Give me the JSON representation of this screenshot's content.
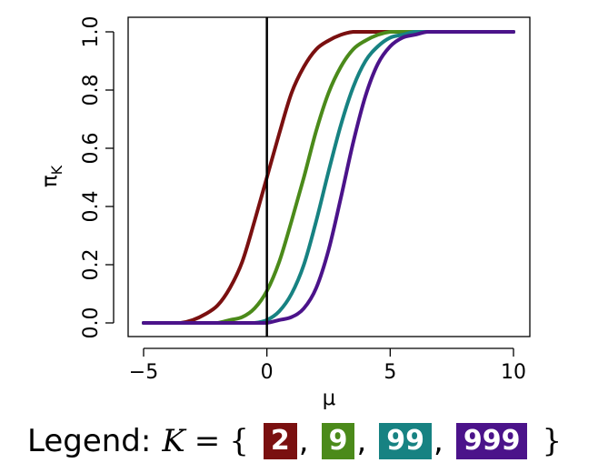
{
  "chart_data": {
    "type": "line",
    "xlabel": "μ",
    "ylabel": "π_K",
    "ylabel_main": "π",
    "ylabel_sub": "K",
    "xlim": [
      -5,
      10
    ],
    "ylim": [
      0,
      1
    ],
    "xticks": [
      -5,
      0,
      5,
      10
    ],
    "xtick_labels": [
      "−5",
      "0",
      "5",
      "10"
    ],
    "yticks": [
      0,
      0.2,
      0.4,
      0.6,
      0.8,
      1.0
    ],
    "ytick_labels": [
      "0.0",
      "0.2",
      "0.4",
      "0.6",
      "0.8",
      "1.0"
    ],
    "vline_x": 0,
    "grid": false,
    "x": [
      -5,
      -4.5,
      -4,
      -3.5,
      -3,
      -2.5,
      -2,
      -1.5,
      -1,
      -0.5,
      0,
      0.5,
      1,
      1.5,
      2,
      2.5,
      3,
      3.5,
      4,
      4.5,
      5,
      5.5,
      6,
      6.5,
      7,
      7.5,
      8,
      8.5,
      9,
      9.5,
      10
    ],
    "series": [
      {
        "name": "2",
        "color": "#7a1010",
        "values": [
          0.0,
          0.0,
          0.0,
          0.0,
          0.01,
          0.03,
          0.06,
          0.12,
          0.21,
          0.35,
          0.5,
          0.65,
          0.79,
          0.88,
          0.94,
          0.97,
          0.99,
          1.0,
          1.0,
          1.0,
          1.0,
          1.0,
          1.0,
          1.0,
          1.0,
          1.0,
          1.0,
          1.0,
          1.0,
          1.0,
          1.0
        ]
      },
      {
        "name": "9",
        "color": "#4b8a1a",
        "values": [
          0.0,
          0.0,
          0.0,
          0.0,
          0.0,
          0.0,
          0.0,
          0.01,
          0.02,
          0.05,
          0.11,
          0.21,
          0.35,
          0.5,
          0.66,
          0.79,
          0.88,
          0.94,
          0.97,
          0.99,
          1.0,
          1.0,
          1.0,
          1.0,
          1.0,
          1.0,
          1.0,
          1.0,
          1.0,
          1.0,
          1.0
        ]
      },
      {
        "name": "99",
        "color": "#178282",
        "values": [
          0.0,
          0.0,
          0.0,
          0.0,
          0.0,
          0.0,
          0.0,
          0.0,
          0.0,
          0.0,
          0.01,
          0.04,
          0.1,
          0.2,
          0.35,
          0.52,
          0.68,
          0.81,
          0.9,
          0.95,
          0.98,
          0.99,
          1.0,
          1.0,
          1.0,
          1.0,
          1.0,
          1.0,
          1.0,
          1.0,
          1.0
        ]
      },
      {
        "name": "999",
        "color": "#4b138a",
        "values": [
          0.0,
          0.0,
          0.0,
          0.0,
          0.0,
          0.0,
          0.0,
          0.0,
          0.0,
          0.0,
          0.0,
          0.01,
          0.02,
          0.05,
          0.12,
          0.25,
          0.43,
          0.62,
          0.78,
          0.89,
          0.95,
          0.98,
          0.99,
          1.0,
          1.0,
          1.0,
          1.0,
          1.0,
          1.0,
          1.0,
          1.0
        ]
      }
    ]
  },
  "legend": {
    "prefix": "Legend:",
    "var": "K",
    "eq": "=",
    "open": "{",
    "close": "}",
    "sep": ",",
    "items": [
      {
        "label": "2",
        "color": "#7a1010"
      },
      {
        "label": "9",
        "color": "#4b8a1a"
      },
      {
        "label": "99",
        "color": "#178282"
      },
      {
        "label": "999",
        "color": "#4b138a"
      }
    ]
  }
}
